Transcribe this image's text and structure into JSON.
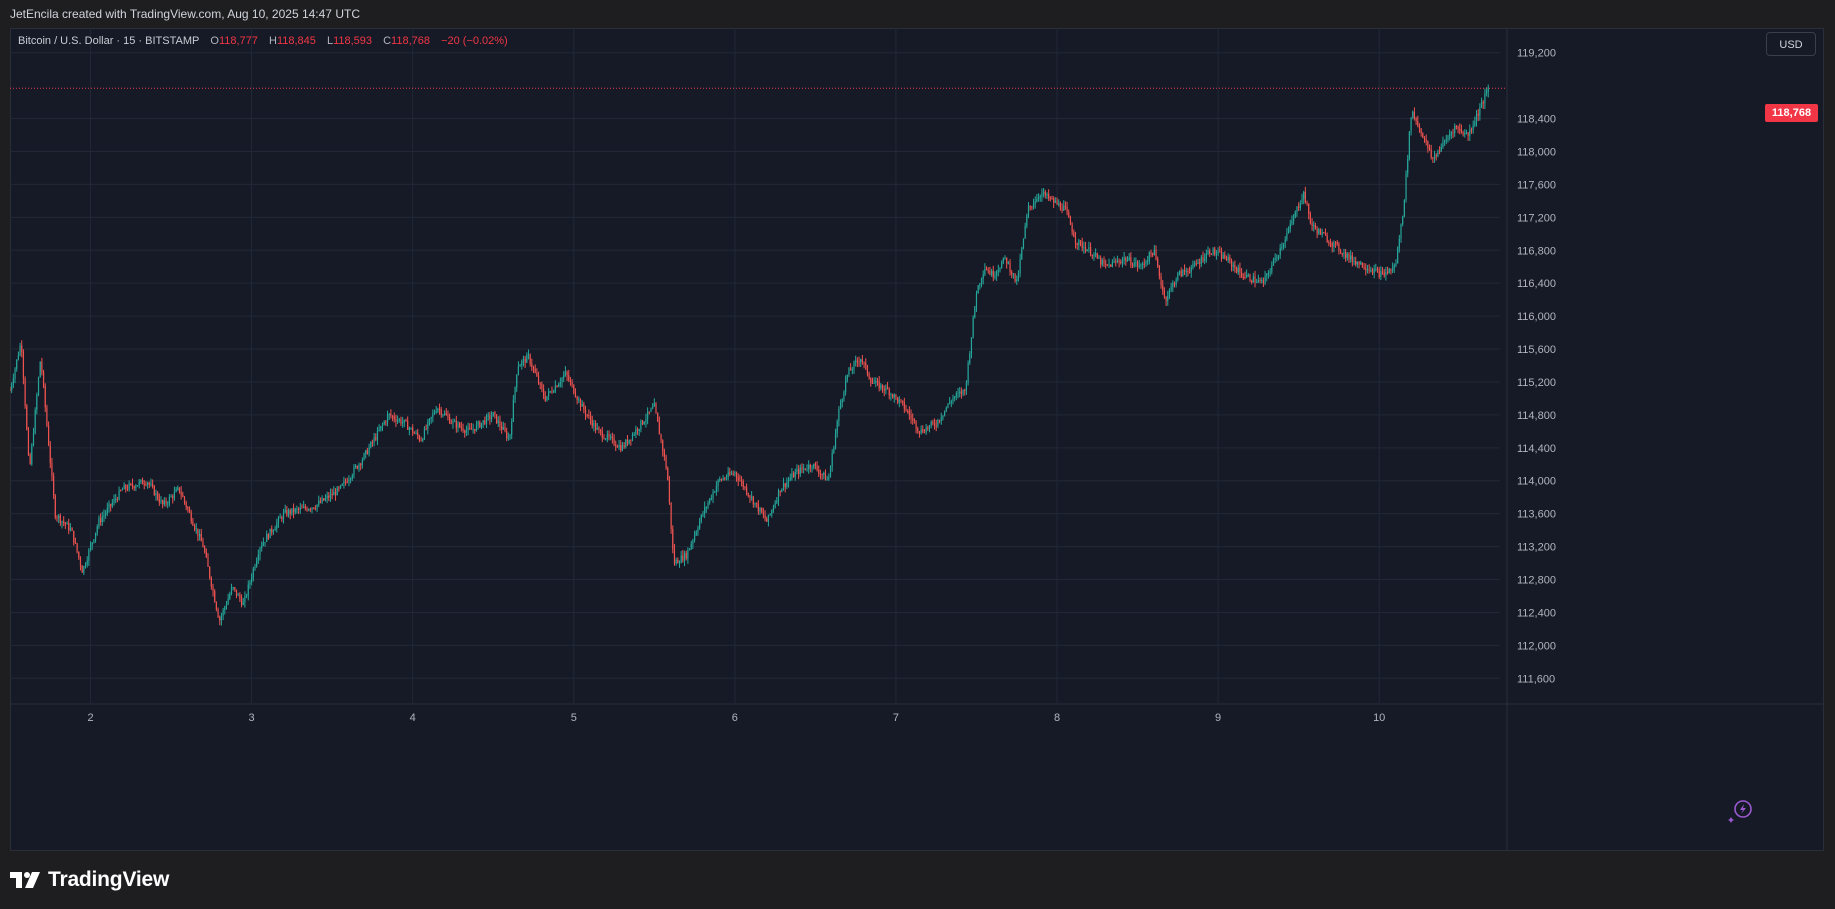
{
  "header": {
    "attribution": "JetEncila created with TradingView.com, Aug 10, 2025 14:47 UTC"
  },
  "legend": {
    "symbol": "Bitcoin / U.S. Dollar · 15 · BITSTAMP",
    "open_label": "O",
    "open": "118,777",
    "high_label": "H",
    "high": "118,845",
    "low_label": "L",
    "low": "118,593",
    "close_label": "C",
    "close": "118,768",
    "change": "−20 (−0.02%)"
  },
  "price_scale": {
    "currency_button": "USD",
    "last_price_label": "118,768"
  },
  "branding": {
    "name": "TradingView"
  },
  "icons": {
    "currency": "usd-button",
    "assistant": "sparkle-icon",
    "brand": "tradingview-logo-icon"
  },
  "colors": {
    "up": "#26a69a",
    "down": "#ef5350",
    "background": "#151a26",
    "grid": "#222837",
    "last_price": "#f23645"
  },
  "chart_data": {
    "type": "candlestick",
    "title": "Bitcoin / U.S. Dollar · 15 · BITSTAMP",
    "interval": "15",
    "ylim": [
      111300,
      119500
    ],
    "y_ticks": [
      111600,
      112000,
      112400,
      112800,
      113200,
      113600,
      114000,
      114400,
      114800,
      115200,
      115600,
      116000,
      116400,
      116800,
      117200,
      117600,
      118000,
      118400,
      119200
    ],
    "y_tick_labels": [
      "111,600",
      "112,000",
      "112,400",
      "112,800",
      "113,200",
      "113,600",
      "114,000",
      "114,400",
      "114,800",
      "115,200",
      "115,600",
      "116,000",
      "116,400",
      "116,800",
      "117,200",
      "117,600",
      "118,000",
      "118,400",
      "119,200"
    ],
    "x_range_days": [
      1.5,
      10.75
    ],
    "x_ticks": [
      2,
      3,
      4,
      5,
      6,
      7,
      8,
      9,
      10
    ],
    "x_tick_labels": [
      "2",
      "3",
      "4",
      "5",
      "6",
      "7",
      "8",
      "9",
      "10"
    ],
    "last_price": 118768,
    "grid": true,
    "price_path": [
      [
        1.5,
        115100
      ],
      [
        1.57,
        115700
      ],
      [
        1.62,
        114100
      ],
      [
        1.69,
        115500
      ],
      [
        1.78,
        113600
      ],
      [
        1.88,
        113400
      ],
      [
        1.95,
        112900
      ],
      [
        2.05,
        113500
      ],
      [
        2.2,
        113900
      ],
      [
        2.35,
        114000
      ],
      [
        2.45,
        113700
      ],
      [
        2.55,
        113900
      ],
      [
        2.7,
        113200
      ],
      [
        2.8,
        112300
      ],
      [
        2.88,
        112700
      ],
      [
        2.95,
        112500
      ],
      [
        3.05,
        113200
      ],
      [
        3.2,
        113600
      ],
      [
        3.4,
        113700
      ],
      [
        3.55,
        113900
      ],
      [
        3.7,
        114300
      ],
      [
        3.85,
        114800
      ],
      [
        3.95,
        114700
      ],
      [
        4.05,
        114500
      ],
      [
        4.15,
        114900
      ],
      [
        4.25,
        114700
      ],
      [
        4.35,
        114600
      ],
      [
        4.5,
        114800
      ],
      [
        4.6,
        114500
      ],
      [
        4.65,
        115400
      ],
      [
        4.72,
        115500
      ],
      [
        4.82,
        115000
      ],
      [
        4.95,
        115300
      ],
      [
        5.05,
        114900
      ],
      [
        5.15,
        114600
      ],
      [
        5.3,
        114400
      ],
      [
        5.42,
        114700
      ],
      [
        5.5,
        114900
      ],
      [
        5.58,
        114100
      ],
      [
        5.62,
        113000
      ],
      [
        5.7,
        113100
      ],
      [
        5.8,
        113600
      ],
      [
        5.9,
        114000
      ],
      [
        6.0,
        114100
      ],
      [
        6.1,
        113800
      ],
      [
        6.2,
        113500
      ],
      [
        6.28,
        113900
      ],
      [
        6.38,
        114100
      ],
      [
        6.48,
        114200
      ],
      [
        6.58,
        114000
      ],
      [
        6.65,
        114900
      ],
      [
        6.7,
        115300
      ],
      [
        6.78,
        115500
      ],
      [
        6.85,
        115200
      ],
      [
        6.95,
        115100
      ],
      [
        7.05,
        114900
      ],
      [
        7.15,
        114600
      ],
      [
        7.25,
        114700
      ],
      [
        7.35,
        115000
      ],
      [
        7.43,
        115100
      ],
      [
        7.5,
        116300
      ],
      [
        7.55,
        116600
      ],
      [
        7.6,
        116500
      ],
      [
        7.68,
        116700
      ],
      [
        7.75,
        116400
      ],
      [
        7.82,
        117300
      ],
      [
        7.9,
        117500
      ],
      [
        7.97,
        117400
      ],
      [
        8.05,
        117300
      ],
      [
        8.12,
        116900
      ],
      [
        8.2,
        116800
      ],
      [
        8.3,
        116600
      ],
      [
        8.42,
        116700
      ],
      [
        8.52,
        116600
      ],
      [
        8.6,
        116800
      ],
      [
        8.67,
        116200
      ],
      [
        8.75,
        116500
      ],
      [
        8.85,
        116600
      ],
      [
        8.95,
        116800
      ],
      [
        9.05,
        116700
      ],
      [
        9.15,
        116500
      ],
      [
        9.28,
        116400
      ],
      [
        9.38,
        116800
      ],
      [
        9.45,
        117100
      ],
      [
        9.53,
        117500
      ],
      [
        9.58,
        117100
      ],
      [
        9.7,
        116900
      ],
      [
        9.82,
        116700
      ],
      [
        9.92,
        116600
      ],
      [
        10.02,
        116500
      ],
      [
        10.1,
        116600
      ],
      [
        10.15,
        117300
      ],
      [
        10.2,
        118500
      ],
      [
        10.27,
        118200
      ],
      [
        10.33,
        117900
      ],
      [
        10.4,
        118100
      ],
      [
        10.47,
        118300
      ],
      [
        10.55,
        118200
      ],
      [
        10.62,
        118500
      ],
      [
        10.68,
        118768
      ]
    ]
  }
}
